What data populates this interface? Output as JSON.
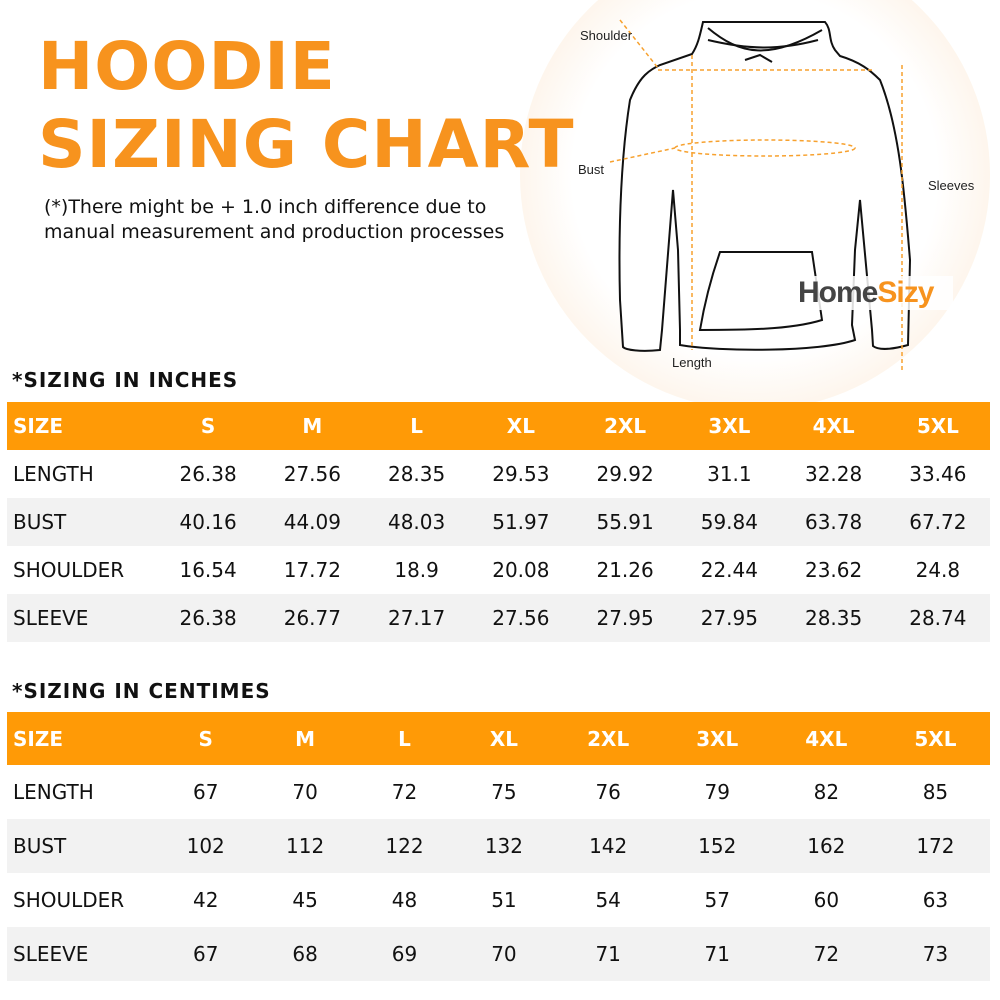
{
  "title_line1": "HOODIE",
  "title_line2": "SIZING CHART",
  "note_line1": "(*)There might be + 1.0 inch difference due to",
  "note_line2": "manual measurement and production processes",
  "diagram": {
    "shoulder": "Shoulder",
    "bust": "Bust",
    "sleeves": "Sleeves",
    "length": "Length"
  },
  "logo": {
    "part1": "Home",
    "part2": "Sizy"
  },
  "colors": {
    "accent": "#ff9a06",
    "title": "#f7931e",
    "row_alt": "#f2f2f2"
  },
  "inches": {
    "heading": "*SIZING IN INCHES",
    "headers": [
      "SIZE",
      "S",
      "M",
      "L",
      "XL",
      "2XL",
      "3XL",
      "4XL",
      "5XL"
    ],
    "rows": [
      [
        "LENGTH",
        "26.38",
        "27.56",
        "28.35",
        "29.53",
        "29.92",
        "31.1",
        "32.28",
        "33.46"
      ],
      [
        "BUST",
        "40.16",
        "44.09",
        "48.03",
        "51.97",
        "55.91",
        "59.84",
        "63.78",
        "67.72"
      ],
      [
        "SHOULDER",
        "16.54",
        "17.72",
        "18.9",
        "20.08",
        "21.26",
        "22.44",
        "23.62",
        "24.8"
      ],
      [
        "SLEEVE",
        "26.38",
        "26.77",
        "27.17",
        "27.56",
        "27.95",
        "27.95",
        "28.35",
        "28.74"
      ]
    ]
  },
  "cm": {
    "heading": "*SIZING IN CENTIMES",
    "headers": [
      "SIZE",
      "S",
      "M",
      "L",
      "XL",
      "2XL",
      "3XL",
      "4XL",
      "5XL"
    ],
    "rows": [
      [
        "LENGTH",
        "67",
        "70",
        "72",
        "75",
        "76",
        "79",
        "82",
        "85"
      ],
      [
        "BUST",
        "102",
        "112",
        "122",
        "132",
        "142",
        "152",
        "162",
        "172"
      ],
      [
        "SHOULDER",
        "42",
        "45",
        "48",
        "51",
        "54",
        "57",
        "60",
        "63"
      ],
      [
        "SLEEVE",
        "67",
        "68",
        "69",
        "70",
        "71",
        "71",
        "72",
        "73"
      ]
    ]
  }
}
